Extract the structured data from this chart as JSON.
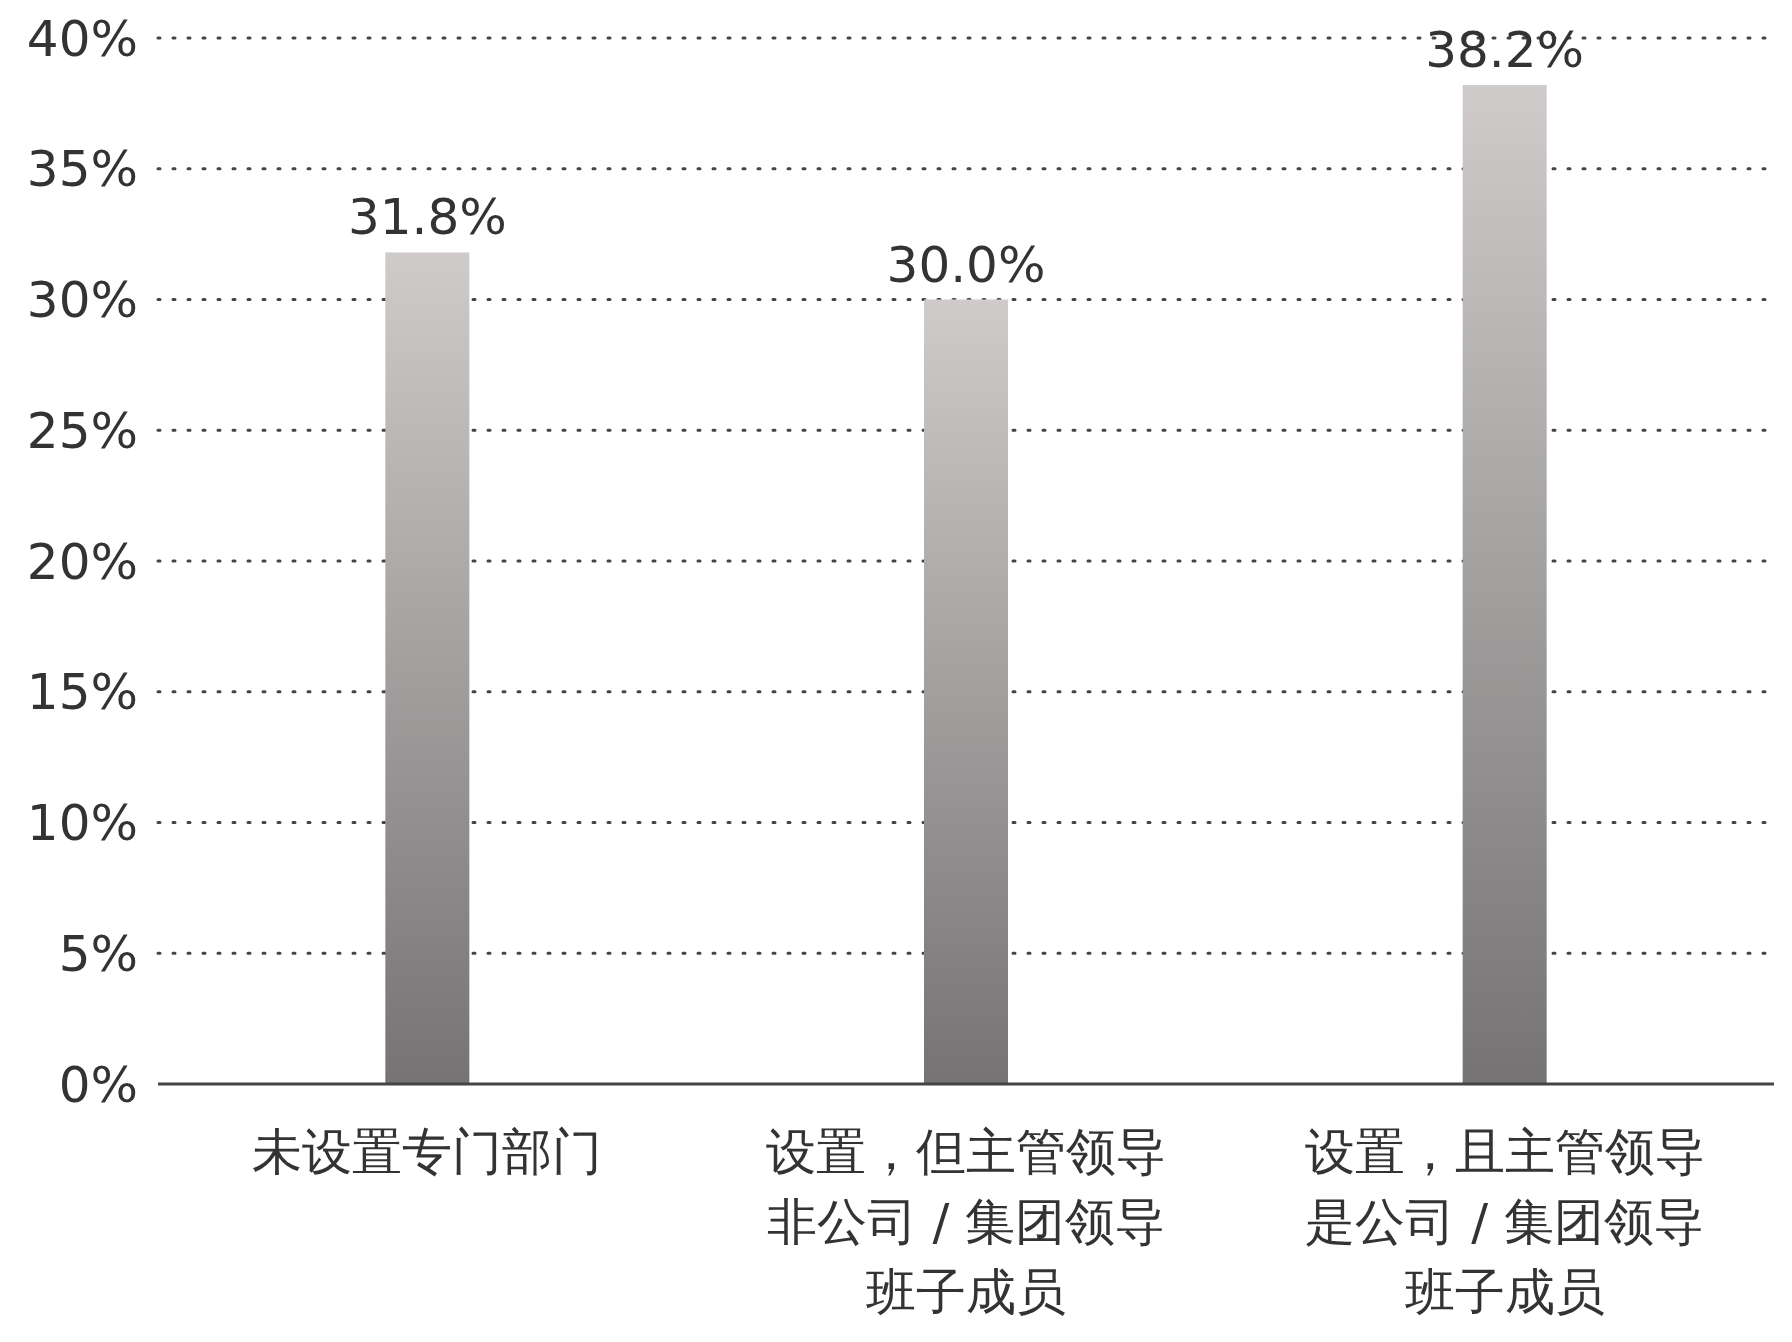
{
  "chart_data": {
    "type": "bar",
    "categories": [
      "未设置专门部门",
      "设置，但主管领导非公司 / 集团领导班子成员",
      "设置，且主管领导是公司 / 集团领导班子成员"
    ],
    "values": [
      31.8,
      30.0,
      38.2
    ],
    "value_labels": [
      "31.8%",
      "30.0%",
      "38.2%"
    ],
    "color": "#757373",
    "ylim": [
      0,
      40
    ],
    "yticks": [
      {
        "value": 0,
        "label": "0%"
      },
      {
        "value": 5,
        "label": "5%"
      },
      {
        "value": 10,
        "label": "10%"
      },
      {
        "value": 15,
        "label": "15%"
      },
      {
        "value": 20,
        "label": "20%"
      },
      {
        "value": 25,
        "label": "25%"
      },
      {
        "value": 30,
        "label": "30%"
      },
      {
        "value": 35,
        "label": "35%"
      },
      {
        "value": 40,
        "label": "40%"
      }
    ],
    "grid": "y"
  }
}
